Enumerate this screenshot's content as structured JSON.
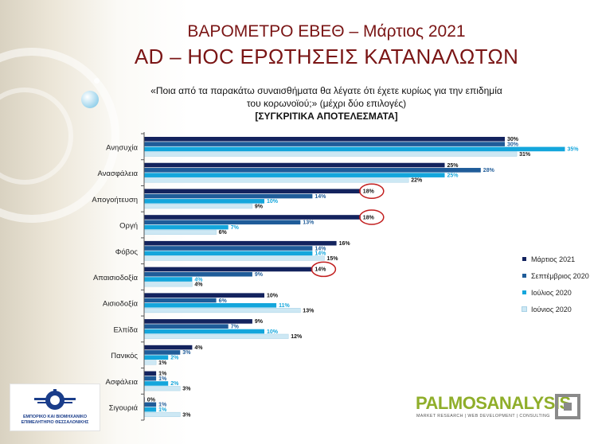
{
  "slide": {
    "title_line1": "ΒΑΡΟΜΕΤΡΟ ΕΒΕΘ – Μάρτιος 2021",
    "title_line2": "AD – HOC ΕΡΩΤΗΣΕΙΣ ΚΑΤΑΝΑΛΩΤΩΝ",
    "question_line1": "«Ποια από τα παρακάτω συναισθήματα  θα λέγατε ότι έχετε κυρίως για την επιδημία",
    "question_line2": "του κορωνοϊού;» (μέχρι δύο επιλογές)",
    "question_line3": "[ΣΥΓΚΡΙΤΙΚΑ ΑΠΟΤΕΛΕΣΜΑΤΑ]"
  },
  "chart_data": {
    "type": "bar",
    "orientation": "horizontal",
    "categories": [
      "Ανησυχία",
      "Ανασφάλεια",
      "Απογοήτευση",
      "Οργή",
      "Φόβος",
      "Απαισιοδοξία",
      "Αισιοδοξία",
      "Ελπίδα",
      "Πανικός",
      "Ασφάλεια",
      "Σιγουριά"
    ],
    "series": [
      {
        "name": "Μάρτιος 2021",
        "color": "#13235e",
        "values": [
          30,
          25,
          18,
          18,
          16,
          14,
          10,
          9,
          4,
          1,
          0
        ]
      },
      {
        "name": "Σεπτέμβριος 2020",
        "color": "#1f5c99",
        "values": [
          30,
          28,
          14,
          13,
          14,
          9,
          6,
          7,
          3,
          1,
          1
        ]
      },
      {
        "name": "Ιούλιος 2020",
        "color": "#14a6dc",
        "values": [
          35,
          25,
          10,
          7,
          14,
          4,
          11,
          10,
          2,
          2,
          1
        ]
      },
      {
        "name": "Ιούνιος 2020",
        "color": "#cde8f4",
        "values": [
          31,
          22,
          9,
          6,
          15,
          4,
          13,
          12,
          1,
          3,
          3
        ]
      }
    ],
    "value_suffix": "%",
    "xlim": [
      0,
      40
    ],
    "grid": false,
    "legend_position": "right",
    "highlighted": [
      {
        "category": "Απογοήτευση",
        "series": "Μάρτιος 2021"
      },
      {
        "category": "Οργή",
        "series": "Μάρτιος 2021"
      },
      {
        "category": "Απαισιοδοξία",
        "series": "Μάρτιος 2021"
      }
    ]
  },
  "logos": {
    "left_line1": "ΕΜΠΟΡΙΚΟ ΚΑΙ ΒΙΟΜΗΧΑΝΙΚΟ",
    "left_line2": "ΕΠΙΜΕΛΗΤΗΡΙΟ ΘΕΣΣΑΛΟΝΙΚΗΣ",
    "right_name": "PALMOSANALYSIS",
    "right_sub": "MARKET RESEARCH | WEB DEVELOPMENT | CONSULTING"
  }
}
